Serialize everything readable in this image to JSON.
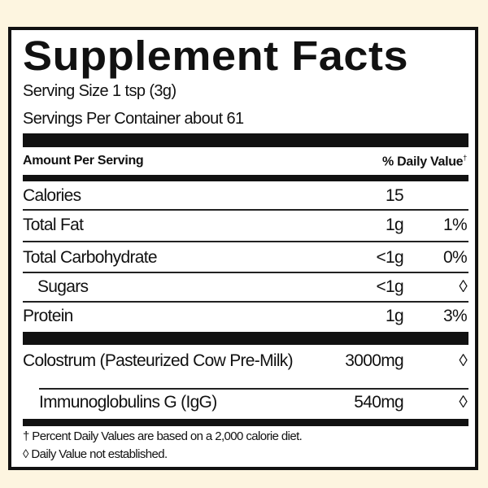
{
  "title": "Supplement Facts",
  "serving_size": "Serving Size 1 tsp (3g)",
  "servings_per_container": "Servings Per Container about 61",
  "header": {
    "amount": "Amount Per Serving",
    "daily_value": "% Daily Value",
    "dv_mark": "†"
  },
  "nutrients": [
    {
      "label": "Calories",
      "amount": "15",
      "dv": ""
    },
    {
      "label": "Total Fat",
      "amount": "1g",
      "dv": "1%"
    },
    {
      "label": "Total Carbohydrate",
      "amount": "<1g",
      "dv": "0%"
    },
    {
      "label": "Sugars",
      "amount": "<1g",
      "dv": "◊"
    },
    {
      "label": "Protein",
      "amount": "1g",
      "dv": "3%"
    }
  ],
  "ingredients": [
    {
      "label": "Colostrum (Pasteurized Cow Pre-Milk)",
      "amount": "3000mg",
      "dv": "◊"
    },
    {
      "label": "Immunoglobulins G (IgG)",
      "amount": "540mg",
      "dv": "◊"
    }
  ],
  "footnotes": [
    "† Percent Daily Values are based on a 2,000 calorie diet.",
    "◊ Daily Value not established."
  ],
  "colors": {
    "background": "#fdf5e0",
    "ink": "#111111",
    "panel": "#ffffff"
  }
}
